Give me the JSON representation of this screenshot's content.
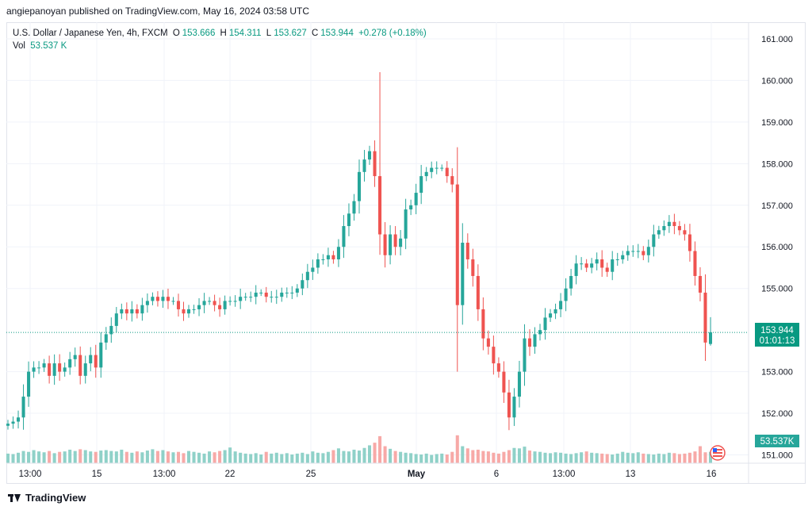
{
  "header": {
    "caption": "angiepanoyan published on TradingView.com, May 16, 2024 03:58 UTC"
  },
  "legend": {
    "symbol": "U.S. Dollar / Japanese Yen, 4h, FXCM",
    "o_label": "O",
    "o": "153.666",
    "h_label": "H",
    "h": "154.311",
    "l_label": "L",
    "l": "153.627",
    "c_label": "C",
    "c": "153.944",
    "change": "+0.278 (+0.18%)",
    "vol_label": "Vol",
    "vol": "53.537 K"
  },
  "price_axis": {
    "ticks": [
      "161.000",
      "160.000",
      "159.000",
      "158.000",
      "157.000",
      "156.000",
      "155.000",
      "153.000",
      "152.000",
      "151.000"
    ],
    "last_price": "153.944",
    "countdown": "01:01:13",
    "volume_tag": "53.537K"
  },
  "time_axis": {
    "ticks": [
      "13:00",
      "15",
      "13:00",
      "22",
      "25",
      "May",
      "6",
      "13:00",
      "13",
      "16"
    ]
  },
  "brand": {
    "name": "TradingView"
  },
  "colors": {
    "up": "#26a69a",
    "down": "#ef5350",
    "vol_up": "#8fd1c8",
    "vol_down": "#f7a9a7",
    "grid": "#f0f3fa"
  },
  "chart_data": {
    "type": "candlestick",
    "title": "U.S. Dollar / Japanese Yen, 4h, FXCM",
    "y_range": [
      150.8,
      161.4
    ],
    "path": [
      151.75,
      151.8,
      151.9,
      152.4,
      153.0,
      153.1,
      153.1,
      153.2,
      152.9,
      153.2,
      153.0,
      153.1,
      153.3,
      153.4,
      152.9,
      153.2,
      153.4,
      153.1,
      153.7,
      153.9,
      154.1,
      154.4,
      154.5,
      154.4,
      154.5,
      154.4,
      154.6,
      154.7,
      154.8,
      154.7,
      154.8,
      154.7,
      154.7,
      154.5,
      154.4,
      154.5,
      154.5,
      154.6,
      154.7,
      154.7,
      154.6,
      154.5,
      154.7,
      154.7,
      154.7,
      154.8,
      154.8,
      154.8,
      154.9,
      154.9,
      154.8,
      154.8,
      154.8,
      154.9,
      154.9,
      154.9,
      155.0,
      155.2,
      155.4,
      155.5,
      155.7,
      155.7,
      155.8,
      155.7,
      156.0,
      156.5,
      156.8,
      157.1,
      157.8,
      158.1,
      158.3,
      157.7,
      156.3,
      155.8,
      156.3,
      156.0,
      156.2,
      156.9,
      157.0,
      157.3,
      157.7,
      157.8,
      157.9,
      157.9,
      157.9,
      157.7,
      157.5,
      154.6,
      156.1,
      155.7,
      155.3,
      154.5,
      153.8,
      153.6,
      153.2,
      153.0,
      152.5,
      151.9,
      152.4,
      153.0,
      153.8,
      153.6,
      153.9,
      154.0,
      154.3,
      154.4,
      154.5,
      154.7,
      155.0,
      155.3,
      155.6,
      155.6,
      155.5,
      155.6,
      155.7,
      155.5,
      155.4,
      155.7,
      155.7,
      155.8,
      155.9,
      155.9,
      155.9,
      155.8,
      156.0,
      156.3,
      156.4,
      156.5,
      156.6,
      156.5,
      156.4,
      156.3,
      155.9,
      155.3,
      154.9,
      153.7,
      153.944
    ],
    "volume": [
      22,
      21,
      24,
      28,
      26,
      30,
      27,
      25,
      28,
      23,
      26,
      27,
      31,
      28,
      32,
      30,
      27,
      26,
      29,
      30,
      28,
      27,
      31,
      26,
      24,
      27,
      25,
      29,
      32,
      28,
      30,
      27,
      25,
      26,
      23,
      28,
      26,
      24,
      22,
      27,
      25,
      28,
      30,
      36,
      27,
      24,
      22,
      21,
      23,
      20,
      26,
      22,
      24,
      21,
      23,
      20,
      22,
      24,
      21,
      27,
      24,
      23,
      26,
      30,
      34,
      28,
      27,
      31,
      29,
      35,
      41,
      47,
      62,
      39,
      33,
      28,
      26,
      24,
      23,
      21,
      20,
      22,
      19,
      21,
      22,
      20,
      26,
      64,
      39,
      34,
      30,
      31,
      28,
      27,
      24,
      22,
      26,
      30,
      35,
      34,
      38,
      29,
      27,
      26,
      24,
      23,
      25,
      24,
      22,
      21,
      23,
      25,
      27,
      24,
      23,
      22,
      21,
      20,
      22,
      26,
      24,
      23,
      25,
      22,
      21,
      20,
      22,
      21,
      24,
      23,
      21,
      22,
      24,
      27,
      39,
      25,
      26
    ],
    "time_ticks": [
      "13:00",
      "15",
      "13:00",
      "22",
      "25",
      "May",
      "6",
      "13:00",
      "13",
      "16"
    ],
    "last": 153.944
  }
}
